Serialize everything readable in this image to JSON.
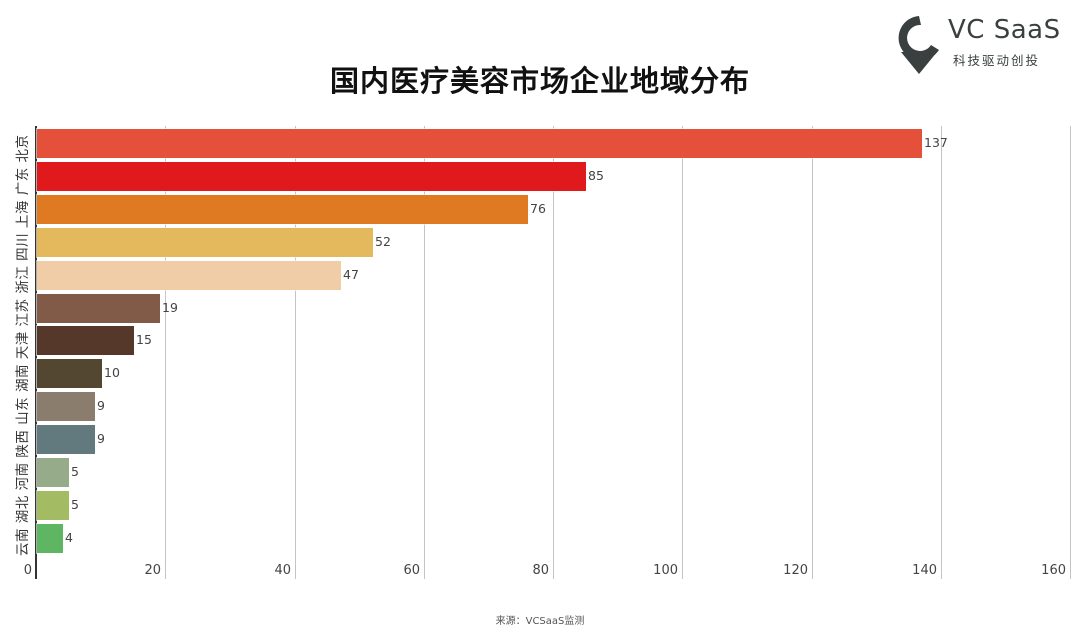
{
  "title": "国内医疗美容市场企业地域分布",
  "logo": {
    "name": "VC SaaS",
    "tagline": "科技驱动创投",
    "color": "#3a3f3f"
  },
  "source": "来源：VCSaaS监测",
  "y_axis_text": "云南 湖北 河南 陕西 山东 湖南 天津 江苏 浙江 四川 上海 广东 北京",
  "chart_data": {
    "type": "bar",
    "orientation": "horizontal",
    "title": "国内医疗美容市场企业地域分布",
    "xlabel": "",
    "ylabel": "",
    "xlim": [
      0,
      160
    ],
    "xticks": [
      "0",
      "20",
      "40",
      "60",
      "80",
      "100",
      "120",
      "140",
      "160"
    ],
    "grid": true,
    "legend": false,
    "categories": [
      "北京",
      "广东",
      "上海",
      "四川",
      "浙江",
      "江苏",
      "天津",
      "湖南",
      "山东",
      "陕西",
      "河南",
      "湖北",
      "云南"
    ],
    "values": [
      137,
      85,
      76,
      52,
      47,
      19,
      15,
      10,
      9,
      9,
      5,
      5,
      4
    ],
    "colors": [
      "#e5503a",
      "#e0191d",
      "#e07a22",
      "#e4b95e",
      "#f0cda6",
      "#825a48",
      "#553829",
      "#534732",
      "#8a7d6e",
      "#62797e",
      "#95ab8a",
      "#a3bb62",
      "#5eb663"
    ],
    "source": "来源：VCSaaS监测"
  }
}
